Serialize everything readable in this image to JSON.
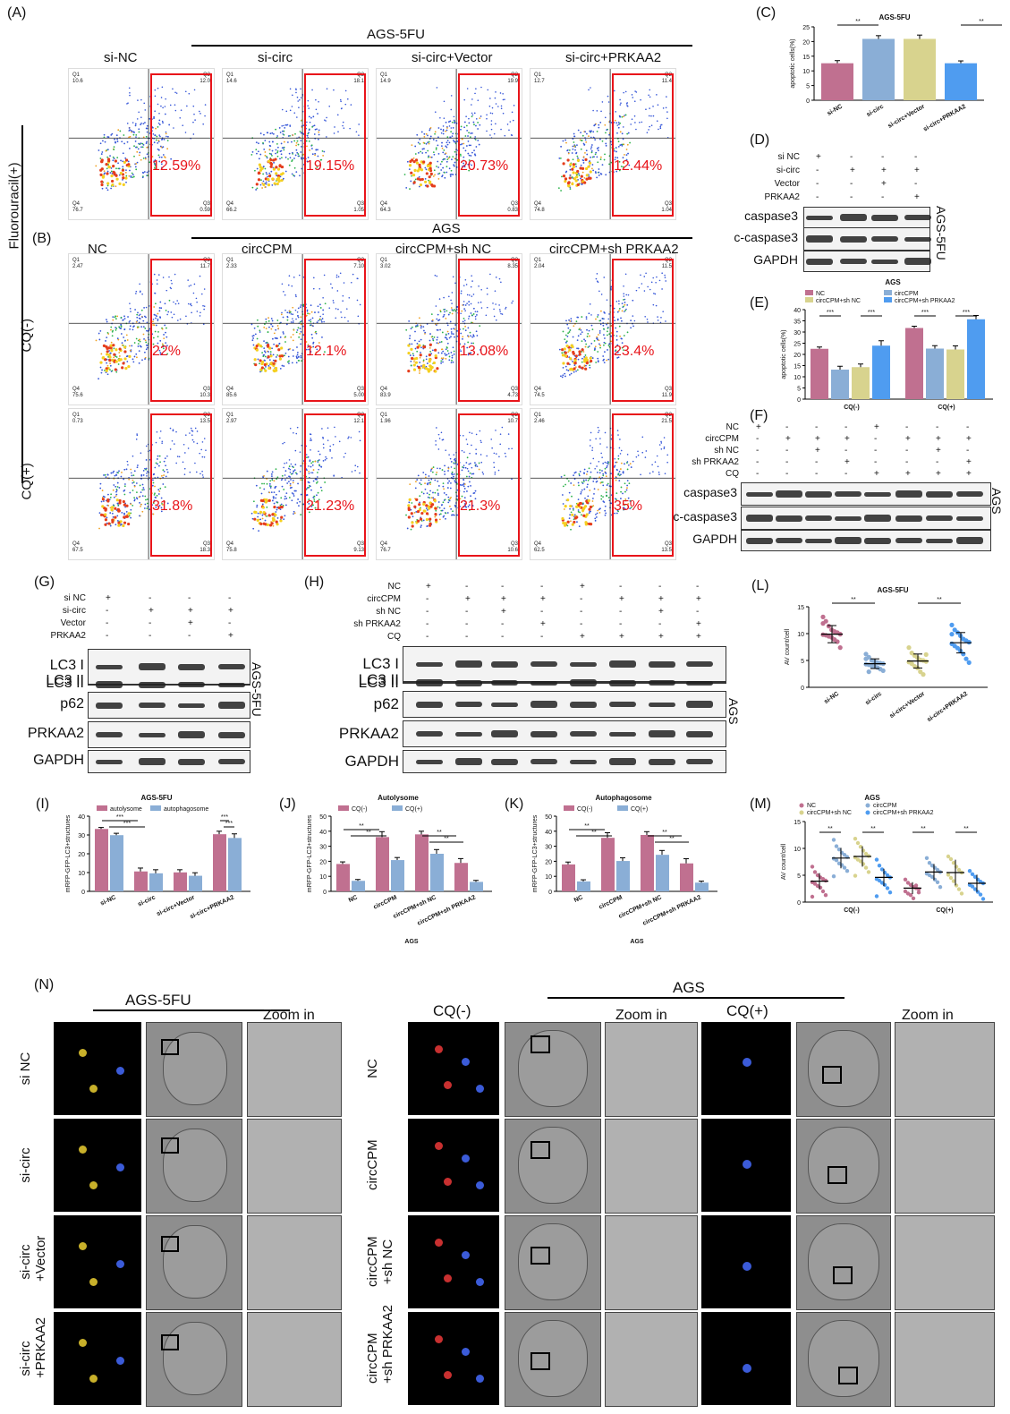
{
  "panels": {
    "A": "(A)",
    "B": "(B)",
    "C": "(C)",
    "D": "(D)",
    "E": "(E)",
    "F": "(F)",
    "G": "(G)",
    "H": "(H)",
    "I": "(I)",
    "J": "(J)",
    "K": "(K)",
    "L": "(L)",
    "M": "(M)",
    "N": "(N)"
  },
  "flow_A": {
    "title": "AGS-5FU",
    "conditions": [
      "si-NC",
      "si-circ",
      "si-circ+Vector",
      "si-circ+PRKAA2"
    ],
    "pct": [
      "12.59%",
      "19.15%",
      "20.73%",
      "12.44%"
    ],
    "quadrants": [
      {
        "q1": "10.6",
        "q2": "12.0",
        "q3": "0.59",
        "q4": "76.7"
      },
      {
        "q1": "14.6",
        "q2": "18.1",
        "q3": "1.05",
        "q4": "66.2"
      },
      {
        "q1": "14.9",
        "q2": "19.9",
        "q3": "0.83",
        "q4": "64.3"
      },
      {
        "q1": "12.7",
        "q2": "11.4",
        "q3": "1.04",
        "q4": "74.8"
      }
    ]
  },
  "flow_B": {
    "title": "AGS",
    "conditions": [
      "NC",
      "circCPM",
      "circCPM+sh NC",
      "circCPM+sh PRKAA2"
    ],
    "row_labels": [
      "CQ(-)",
      "CQ(+)"
    ],
    "side_label": "Fluorouracil(+)",
    "pct_cqneg": [
      "22%",
      "12.1%",
      "13.08%",
      "23.4%"
    ],
    "pct_cqpos": [
      "31.8%",
      "21.23%",
      "21.3%",
      "35%"
    ],
    "quadrants_cqneg": [
      {
        "q1": "2.47",
        "q2": "11.7",
        "q3": "10.3",
        "q4": "75.6"
      },
      {
        "q1": "2.33",
        "q2": "7.10",
        "q3": "5.00",
        "q4": "85.6"
      },
      {
        "q1": "3.02",
        "q2": "8.35",
        "q3": "4.73",
        "q4": "83.9"
      },
      {
        "q1": "2.04",
        "q2": "11.5",
        "q3": "11.9",
        "q4": "74.5"
      }
    ],
    "quadrants_cqpos": [
      {
        "q1": "0.73",
        "q2": "13.5",
        "q3": "18.3",
        "q4": "67.5"
      },
      {
        "q1": "2.97",
        "q2": "12.1",
        "q3": "9.13",
        "q4": "75.8"
      },
      {
        "q1": "1.96",
        "q2": "10.7",
        "q3": "10.6",
        "q4": "76.7"
      },
      {
        "q1": "2.46",
        "q2": "21.5",
        "q3": "13.5",
        "q4": "62.5"
      }
    ]
  },
  "chart_C": {
    "title": "AGS-5FU",
    "ylabel": "apoptotic cells(%)",
    "sig": [
      "**",
      "**"
    ]
  },
  "chart_data": [
    {
      "type": "bar",
      "title": "AGS-5FU",
      "ylabel": "apoptotic cells(%)",
      "categories": [
        "si-NC",
        "si-circ",
        "si-circ+Vector",
        "si-circ+PRKAA2"
      ],
      "values": [
        12.6,
        20.9,
        20.9,
        12.6
      ],
      "errors": [
        0.9,
        1.1,
        1.3,
        0.8
      ],
      "colors": [
        "#c07090",
        "#8aaed6",
        "#d8d38e",
        "#4f9cf0"
      ],
      "ylim": [
        0,
        25
      ],
      "yticks": [
        0,
        5,
        10,
        15,
        20,
        25
      ]
    },
    {
      "type": "bar",
      "title": "AGS",
      "ylabel": "apoptotic cells(%)",
      "categories": [
        "CQ(-)",
        "CQ(+)"
      ],
      "series": [
        {
          "name": "NC",
          "values": [
            22.5,
            31.8
          ],
          "errors": [
            0.8,
            0.8
          ],
          "color": "#c07090"
        },
        {
          "name": "circCPM",
          "values": [
            13.2,
            22.6
          ],
          "errors": [
            1.5,
            1.3
          ],
          "color": "#8aaed6"
        },
        {
          "name": "circCPM+sh NC",
          "values": [
            14.3,
            22.2
          ],
          "errors": [
            1.4,
            1.6
          ],
          "color": "#d8d38e"
        },
        {
          "name": "circCPM+sh PRKAA2",
          "values": [
            23.9,
            35.7
          ],
          "errors": [
            2.2,
            1.7
          ],
          "color": "#4f9cf0"
        }
      ],
      "ylim": [
        0,
        40
      ],
      "yticks": [
        0,
        5,
        10,
        15,
        20,
        25,
        30,
        35,
        40
      ]
    },
    {
      "type": "bar",
      "title": "AGS-5FU",
      "ylabel": "mRFP-GFP-LC3+structures",
      "categories": [
        "si-NC",
        "si-circ",
        "si-circ+Vector",
        "si-circ+PRKAA2"
      ],
      "series": [
        {
          "name": "autolysome",
          "values": [
            33.2,
            10.6,
            10.1,
            30.4
          ],
          "errors": [
            0.8,
            1.8,
            1.4,
            1.6
          ],
          "color": "#c07090"
        },
        {
          "name": "autophagosome",
          "values": [
            29.9,
            9.6,
            8.3,
            28.4
          ],
          "errors": [
            1.0,
            1.9,
            1.6,
            2.2
          ],
          "color": "#8aaed6"
        }
      ],
      "ylim": [
        0,
        40
      ],
      "yticks": [
        0,
        10,
        20,
        30,
        40
      ]
    },
    {
      "type": "bar",
      "title": "Autolysome",
      "xlabel": "AGS",
      "ylabel": "mRFP-GFP-LC3+structures",
      "categories": [
        "NC",
        "circCPM",
        "circCPM+sh NC",
        "circCPM+sh PRKAA2"
      ],
      "series": [
        {
          "name": "CQ(-)",
          "values": [
            18.2,
            36.1,
            37.9,
            18.9
          ],
          "errors": [
            1.4,
            3.6,
            2.1,
            2.9
          ],
          "color": "#c07090"
        },
        {
          "name": "CQ(+)",
          "values": [
            7.0,
            20.8,
            25.0,
            6.3
          ],
          "errors": [
            0.9,
            1.7,
            2.8,
            1.0
          ],
          "color": "#8aaed6"
        }
      ],
      "ylim": [
        0,
        50
      ],
      "yticks": [
        0,
        10,
        20,
        30,
        40,
        50
      ]
    },
    {
      "type": "bar",
      "title": "Autophagosome",
      "xlabel": "AGS",
      "ylabel": "mRFP-GFP-LC3+structures",
      "categories": [
        "NC",
        "circCPM",
        "circCPM+sh NC",
        "circCPM+sh PRKAA2"
      ],
      "series": [
        {
          "name": "CQ(-)",
          "values": [
            17.9,
            35.6,
            37.5,
            18.6
          ],
          "errors": [
            1.6,
            3.4,
            2.2,
            3.1
          ],
          "color": "#c07090"
        },
        {
          "name": "CQ(+)",
          "values": [
            6.6,
            20.2,
            24.3,
            5.8
          ],
          "errors": [
            1.1,
            2.1,
            2.9,
            1.0
          ],
          "color": "#8aaed6"
        }
      ],
      "ylim": [
        0,
        50
      ],
      "yticks": [
        0,
        10,
        20,
        30,
        40,
        50
      ]
    },
    {
      "type": "scatter",
      "title": "AGS-5FU",
      "ylabel": "AV count/cell",
      "categories": [
        "si-NC",
        "si-circ",
        "si-circ+Vector",
        "si-circ+PRKAA2"
      ],
      "means": [
        9.9,
        4.4,
        4.9,
        8.3
      ],
      "sds": [
        1.6,
        0.9,
        1.3,
        1.9
      ],
      "colors": [
        "#c07090",
        "#8aaed6",
        "#d8d38e",
        "#4f9cf0"
      ],
      "points": [
        [
          13.1,
          12.3,
          11.4,
          10.7,
          10.4,
          10.2,
          9.9,
          9.8,
          9.7,
          9.5,
          9.3,
          8.9,
          8.5,
          7.4,
          11.9
        ],
        [
          6.2,
          5.6,
          5.0,
          4.8,
          4.6,
          4.5,
          4.4,
          4.3,
          4.2,
          4.0,
          3.9,
          3.7,
          3.4,
          3.1,
          5.3,
          2.9
        ],
        [
          7.4,
          6.4,
          5.9,
          5.5,
          5.1,
          5.0,
          4.8,
          4.7,
          4.4,
          3.9,
          3.6,
          2.9,
          2.4,
          6.1
        ],
        [
          11.6,
          10.7,
          10.2,
          9.6,
          9.0,
          8.7,
          8.4,
          8.1,
          7.7,
          7.3,
          6.8,
          6.2,
          5.3,
          4.6,
          9.9
        ]
      ],
      "ylim": [
        0,
        15
      ],
      "yticks": [
        0,
        5,
        10,
        15
      ]
    },
    {
      "type": "scatter",
      "title": "AGS",
      "ylabel": "AV count/cell",
      "categories": [
        "CQ(-)",
        "CQ(+)"
      ],
      "series": [
        {
          "name": "NC",
          "color": "#c07090",
          "means": [
            3.9,
            2.6
          ],
          "sds": [
            1.5,
            1.1
          ],
          "points": [
            [
              6.6,
              5.6,
              5.0,
              4.6,
              4.3,
              4.0,
              3.7,
              3.4,
              3.0,
              2.7,
              2.0,
              1.3,
              1.0
            ],
            [
              4.2,
              3.6,
              3.2,
              2.8,
              2.6,
              2.4,
              2.0,
              1.6,
              1.3,
              0.7,
              3.1,
              1.8
            ]
          ]
        },
        {
          "name": "circCPM",
          "color": "#8aaed6",
          "means": [
            8.2,
            5.6
          ],
          "sds": [
            1.9,
            1.5
          ],
          "points": [
            [
              11.6,
              10.4,
              9.8,
              9.2,
              8.8,
              8.4,
              8.1,
              7.8,
              7.2,
              6.9,
              6.4,
              5.8,
              4.8
            ],
            [
              8.2,
              7.3,
              6.8,
              6.4,
              6.0,
              5.6,
              5.3,
              5.0,
              4.7,
              4.2,
              3.7,
              2.8
            ]
          ]
        },
        {
          "name": "circCPM+sh NC",
          "color": "#d8d38e",
          "means": [
            8.5,
            5.5
          ],
          "sds": [
            1.9,
            2.4
          ],
          "points": [
            [
              11.8,
              11.0,
              10.3,
              9.6,
              9.0,
              8.6,
              8.3,
              7.9,
              7.6,
              7.1,
              6.4,
              5.6,
              4.9
            ],
            [
              8.5,
              8.0,
              7.3,
              6.6,
              6.0,
              5.5,
              5.1,
              4.5,
              3.9,
              3.1,
              2.4,
              1.6
            ]
          ]
        },
        {
          "name": "circCPM+sh PRKAA2",
          "color": "#4f9cf0",
          "means": [
            4.6,
            3.5
          ],
          "sds": [
            1.6,
            1.6
          ],
          "points": [
            [
              7.9,
              6.8,
              6.1,
              5.5,
              5.0,
              4.6,
              4.3,
              4.0,
              3.6,
              3.2,
              2.6,
              1.8,
              1.1
            ],
            [
              5.8,
              5.2,
              4.7,
              4.2,
              3.8,
              3.5,
              3.2,
              2.9,
              2.4,
              1.9,
              1.4,
              0.6
            ]
          ]
        }
      ],
      "ylim": [
        0,
        15
      ],
      "yticks": [
        0,
        5,
        10,
        15
      ]
    }
  ],
  "blot_D": {
    "rows": [
      "si NC",
      "si-circ",
      "Vector",
      "PRKAA2"
    ],
    "signs": [
      [
        "+",
        "-",
        "-",
        "-"
      ],
      [
        "-",
        "+",
        "+",
        "+"
      ],
      [
        "-",
        "-",
        "+",
        "-"
      ],
      [
        "-",
        "-",
        "-",
        "+"
      ]
    ],
    "bands": [
      "caspase3",
      "c-caspase3",
      "GAPDH"
    ],
    "side": "AGS-5FU"
  },
  "blot_F": {
    "rows": [
      "NC",
      "circCPM",
      "sh NC",
      "sh PRKAA2",
      "CQ"
    ],
    "signs": [
      [
        "+",
        "-",
        "-",
        "-",
        "+",
        "-",
        "-",
        "-"
      ],
      [
        "-",
        "+",
        "+",
        "+",
        "-",
        "+",
        "+",
        "+"
      ],
      [
        "-",
        "-",
        "+",
        "-",
        "-",
        "-",
        "+",
        "-"
      ],
      [
        "-",
        "-",
        "-",
        "+",
        "-",
        "-",
        "-",
        "+"
      ],
      [
        "-",
        "-",
        "-",
        "-",
        "+",
        "+",
        "+",
        "+"
      ]
    ],
    "bands": [
      "caspase3",
      "c-caspase3",
      "GAPDH"
    ],
    "side": "AGS"
  },
  "blot_G": {
    "rows": [
      "si NC",
      "si-circ",
      "Vector",
      "PRKAA2"
    ],
    "signs": [
      [
        "+",
        "-",
        "-",
        "-"
      ],
      [
        "-",
        "+",
        "+",
        "+"
      ],
      [
        "-",
        "-",
        "+",
        "-"
      ],
      [
        "-",
        "-",
        "-",
        "+"
      ]
    ],
    "bands": [
      "LC3 I",
      "LC3 II",
      "p62",
      "PRKAA2",
      "GAPDH"
    ],
    "side": "AGS-5FU"
  },
  "blot_H": {
    "rows": [
      "NC",
      "circCPM",
      "sh NC",
      "sh PRKAA2",
      "CQ"
    ],
    "signs": [
      [
        "+",
        "-",
        "-",
        "-",
        "+",
        "-",
        "-",
        "-"
      ],
      [
        "-",
        "+",
        "+",
        "+",
        "-",
        "+",
        "+",
        "+"
      ],
      [
        "-",
        "-",
        "+",
        "-",
        "-",
        "-",
        "+",
        "-"
      ],
      [
        "-",
        "-",
        "-",
        "+",
        "-",
        "-",
        "-",
        "+"
      ],
      [
        "-",
        "-",
        "-",
        "-",
        "+",
        "+",
        "+",
        "+"
      ]
    ],
    "bands": [
      "LC3 I",
      "LC3 II",
      "p62",
      "PRKAA2",
      "GAPDH"
    ],
    "side": "AGS"
  },
  "chart_labels": {
    "E_title": "AGS",
    "I_title": "AGS-5FU",
    "J_title": "Autolysome",
    "K_title": "Autophagosome",
    "JK_x": "AGS",
    "L_title": "AGS-5FU",
    "M_title": "AGS",
    "sig2": "**",
    "sig3": "***"
  },
  "panel_N": {
    "left_title": "AGS-5FU",
    "right_title": "AGS",
    "zoom": "Zoom in",
    "cq_neg": "CQ(-)",
    "cq_pos": "CQ(+)",
    "left_rows": [
      "si NC",
      "si-circ",
      "si-circ\n+Vector",
      "si-circ\n+PRKAA2"
    ],
    "right_rows": [
      "NC",
      "circCPM",
      "circCPM\n+sh NC",
      "circCPM\n+sh PRKAA2"
    ]
  }
}
